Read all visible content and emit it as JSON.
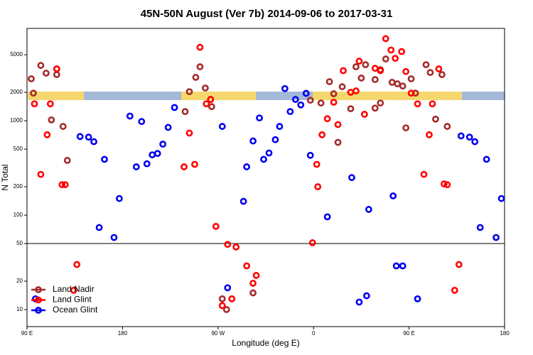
{
  "chart_data": {
    "type": "scatter",
    "title": "45N-50N August (Ver 7b)   2014-09-06 to 2017-03-31",
    "xlabel": "Longitude (deg E)",
    "ylabel": "N Total",
    "xlim": [
      90,
      540
    ],
    "ylim": [
      6.6,
      9500
    ],
    "log_y": true,
    "xticks": [
      {
        "value": 90,
        "label": "90 E"
      },
      180,
      {
        "value": 270,
        "label": "90 W"
      },
      0,
      {
        "value": 450,
        "label": "90 E"
      },
      {
        "value": 540,
        "label": "180"
      }
    ],
    "yticks": [
      10,
      20,
      50,
      100,
      200,
      500,
      1000,
      2000,
      5000
    ],
    "hline": 50,
    "legend": "bottom-left",
    "series": [
      {
        "name": "Land Nadir",
        "color": "#a52a2a",
        "x": [
          94,
          96,
          103,
          108,
          113,
          118,
          118,
          124,
          128,
          239,
          243,
          249,
          253,
          258,
          263,
          264,
          274,
          278,
          303,
          357,
          367,
          375,
          379,
          383,
          387,
          395,
          400,
          405,
          409,
          418,
          418,
          423,
          423,
          428,
          434,
          439,
          444,
          447,
          452,
          456,
          466,
          470,
          475,
          481,
          486
        ],
        "values": [
          2780,
          1960,
          3850,
          3190,
          1020,
          3080,
          3540,
          870,
          380,
          1250,
          2030,
          2880,
          3730,
          2220,
          1680,
          1410,
          13,
          10,
          15,
          1650,
          1540,
          2590,
          1930,
          590,
          2290,
          1340,
          3730,
          2830,
          3920,
          2730,
          1360,
          1540,
          3470,
          4510,
          2550,
          2460,
          2330,
          840,
          2780,
          1960,
          3920,
          3240,
          1040,
          3080,
          870
        ]
      },
      {
        "name": "Land Glint",
        "color": "#ff0000",
        "x": [
          97,
          109,
          103,
          112,
          118,
          123,
          126,
          134,
          137,
          238,
          243,
          248,
          253,
          259,
          263,
          268,
          274,
          279,
          283,
          287,
          297,
          303,
          306,
          359,
          363,
          364,
          368,
          373,
          379,
          383,
          388,
          395,
          400,
          403,
          408,
          418,
          423,
          428,
          433,
          437,
          443,
          447,
          452,
          458,
          464,
          469,
          472,
          478,
          483,
          486,
          493,
          497
        ],
        "values": [
          1510,
          710,
          270,
          1510,
          3540,
          210,
          210,
          16,
          30,
          325,
          740,
          345,
          6000,
          1510,
          1680,
          76,
          11,
          49,
          13,
          46,
          29,
          19,
          23,
          51,
          345,
          200,
          710,
          1050,
          1570,
          910,
          3390,
          2000,
          2070,
          4270,
          1170,
          3590,
          3390,
          7400,
          5600,
          4580,
          5400,
          3320,
          1960,
          1510,
          270,
          710,
          1510,
          3540,
          214,
          210,
          16,
          30
        ]
      },
      {
        "name": "Ocean Glint",
        "color": "#0000ee",
        "x": [
          98,
          140,
          148,
          153,
          158,
          163,
          172,
          177,
          187,
          193,
          198,
          203,
          208,
          213,
          218,
          223,
          229,
          274,
          279,
          294,
          297,
          303,
          309,
          313,
          318,
          324,
          328,
          333,
          338,
          343,
          348,
          353,
          357,
          373,
          396,
          403,
          410,
          412,
          435,
          438,
          444,
          458,
          499,
          507,
          512,
          517,
          523,
          532,
          537
        ],
        "values": [
          13,
          680,
          670,
          600,
          74,
          390,
          58,
          150,
          1120,
          325,
          980,
          350,
          435,
          450,
          565,
          850,
          1380,
          870,
          17,
          140,
          325,
          610,
          1070,
          390,
          455,
          630,
          870,
          2190,
          1250,
          1680,
          1470,
          1950,
          430,
          96,
          250,
          12,
          14,
          115,
          160,
          29,
          29,
          13,
          690,
          670,
          600,
          74,
          390,
          58,
          150
        ]
      }
    ]
  }
}
